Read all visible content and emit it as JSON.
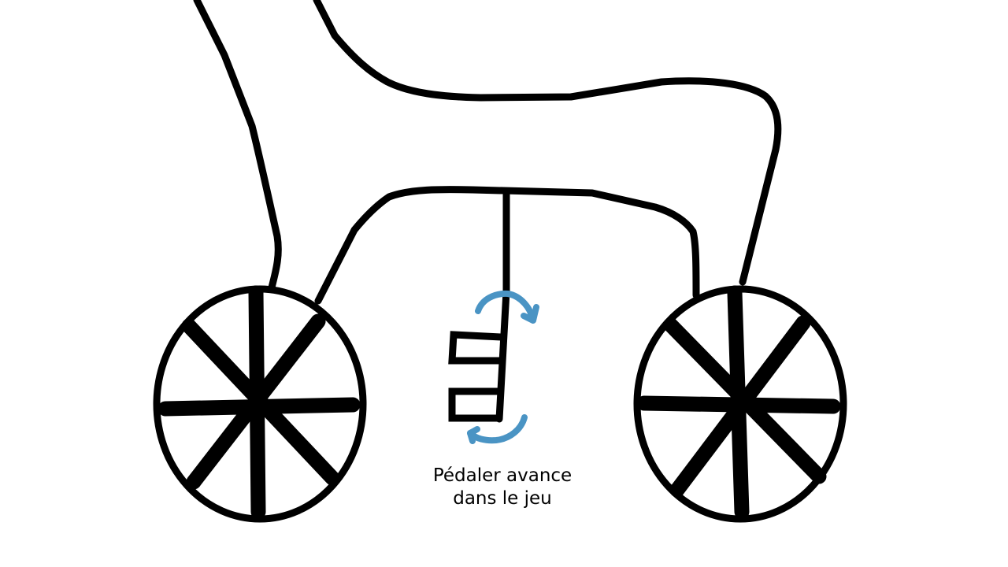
{
  "caption": {
    "line1": "Pédaler avance",
    "line2": "dans le jeu"
  },
  "colors": {
    "ink": "#000000",
    "arrow": "#4a94c4",
    "background": "#ffffff"
  },
  "icons": {
    "left_wheel": "wheel-icon",
    "right_wheel": "wheel-icon",
    "pedal": "pedal-icon",
    "rotation_arrows": "rotation-arrow-icon"
  }
}
